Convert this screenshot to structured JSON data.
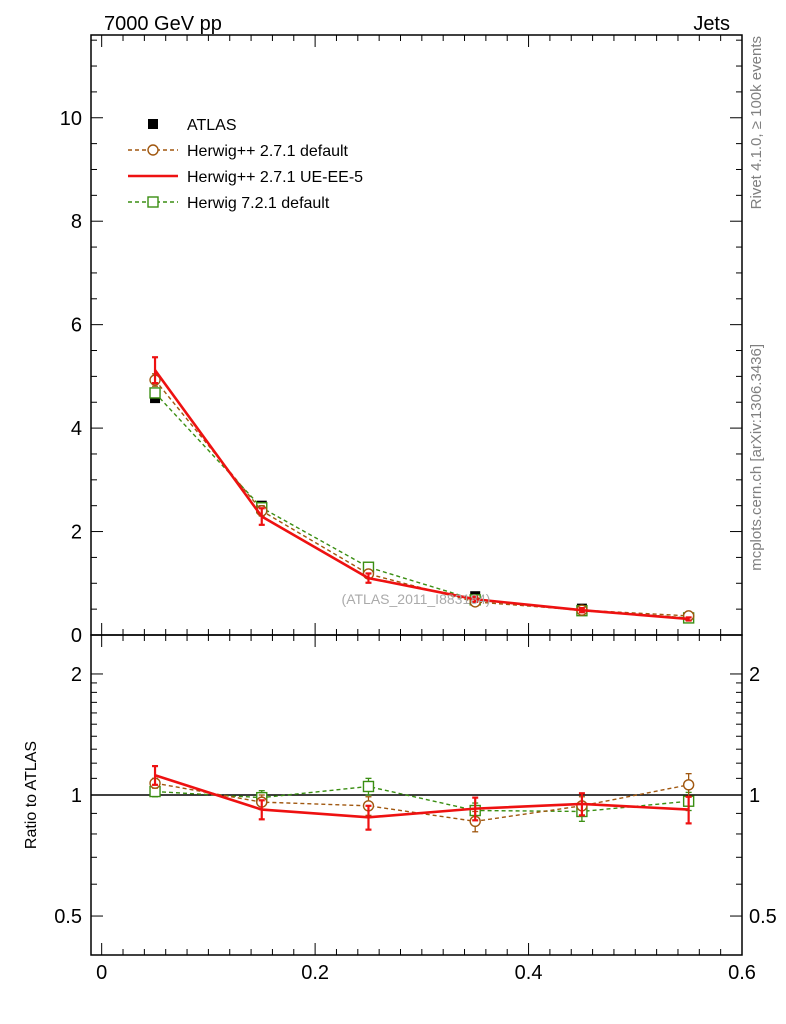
{
  "header": {
    "left_title": "7000 GeV pp",
    "right_title": "Jets"
  },
  "side_labels": {
    "rivet": "Rivet 4.1.0, ≥ 100k events",
    "mcplots": "mcplots.cern.ch [arXiv:1306.3436]"
  },
  "watermark": "(ATLAS_2011_I883184)",
  "colors": {
    "atlas": "#000000",
    "herwigpp_default": "#a0570f",
    "herwigpp_ueee5": "#ee1111",
    "herwig7": "#3a8e12",
    "watermark": "#aaaaaa"
  },
  "chart_data": [
    {
      "type": "line",
      "panel": "main",
      "x": [
        0.05,
        0.15,
        0.25,
        0.35,
        0.45,
        0.55
      ],
      "xlim": [
        -0.01,
        0.6
      ],
      "ylim": [
        0,
        11.6
      ],
      "yticks": [
        0,
        2,
        4,
        6,
        8,
        10
      ],
      "ytick_labels": [
        "0",
        "2",
        "4",
        "6",
        "8",
        "10"
      ],
      "legend_position": "top-left",
      "series": [
        {
          "key": "atlas",
          "name": "ATLAS",
          "style": "data-squares",
          "values": [
            4.58,
            2.5,
            1.26,
            0.75,
            0.51,
            0.34
          ],
          "errors": [
            0.08,
            0.06,
            0.05,
            0.04,
            0.03,
            0.02
          ]
        },
        {
          "key": "herwigpp_default",
          "name": "Herwig++ 2.7.1 default",
          "style": "dashed-circle",
          "values": [
            4.93,
            2.4,
            1.18,
            0.64,
            0.48,
            0.37
          ],
          "errors": [
            0.12,
            0.1,
            0.06,
            0.03,
            0.02,
            0.02
          ]
        },
        {
          "key": "herwigpp_ueee5",
          "name": "Herwig++ 2.7.1 UE-EE-5",
          "style": "solid",
          "values": [
            5.12,
            2.29,
            1.1,
            0.69,
            0.48,
            0.31
          ],
          "errors": [
            0.25,
            0.16,
            0.09,
            0.05,
            0.04,
            0.03
          ]
        },
        {
          "key": "herwig7",
          "name": "Herwig 7.2.1 default",
          "style": "dashed-square",
          "values": [
            4.68,
            2.46,
            1.31,
            0.68,
            0.47,
            0.33
          ],
          "errors": [
            0.08,
            0.07,
            0.06,
            0.03,
            0.02,
            0.02
          ]
        }
      ]
    },
    {
      "type": "line",
      "panel": "ratio",
      "ylabel": "Ratio to ATLAS",
      "x": [
        0.05,
        0.15,
        0.25,
        0.35,
        0.45,
        0.55
      ],
      "xlim": [
        -0.01,
        0.6
      ],
      "ylim": [
        0.4,
        2.5
      ],
      "yscale": "log",
      "reference_line": 1,
      "yticks": [
        0.5,
        1,
        2
      ],
      "ytick_labels": [
        "0.5",
        "1",
        "2"
      ],
      "xticks": [
        0,
        0.2,
        0.4,
        0.6
      ],
      "xtick_labels": [
        "0",
        "0.2",
        "0.4",
        "0.6"
      ],
      "series": [
        {
          "key": "herwigpp_default",
          "name": "Herwig++ 2.7.1 default",
          "style": "dashed-circle",
          "values": [
            1.07,
            0.96,
            0.94,
            0.86,
            0.94,
            1.06
          ],
          "errors": [
            0.03,
            0.04,
            0.05,
            0.05,
            0.05,
            0.07
          ]
        },
        {
          "key": "herwigpp_ueee5",
          "name": "Herwig++ 2.7.1 UE-EE-5",
          "style": "solid",
          "values": [
            1.12,
            0.92,
            0.88,
            0.925,
            0.95,
            0.92
          ],
          "errors": [
            0.06,
            0.05,
            0.06,
            0.06,
            0.06,
            0.07
          ]
        },
        {
          "key": "herwig7",
          "name": "Herwig 7.2.1 default",
          "style": "dashed-square",
          "values": [
            1.02,
            0.985,
            1.05,
            0.915,
            0.91,
            0.965
          ],
          "errors": [
            0.03,
            0.04,
            0.05,
            0.04,
            0.05,
            0.05
          ]
        }
      ]
    }
  ]
}
